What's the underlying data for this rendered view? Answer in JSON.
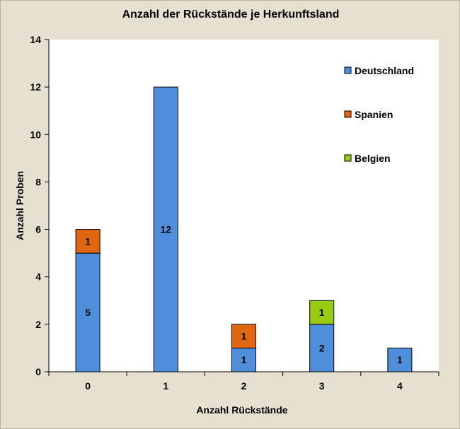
{
  "chart_data": {
    "type": "bar",
    "stacked": true,
    "title": "Anzahl der Rückstände je Herkunftsland",
    "xlabel": "Anzahl Rückstände",
    "ylabel": "Anzahl Proben",
    "categories": [
      "0",
      "1",
      "2",
      "3",
      "4"
    ],
    "ylim": [
      0,
      14
    ],
    "yticks": [
      0,
      2,
      4,
      6,
      8,
      10,
      12,
      14
    ],
    "grid": false,
    "legend_position": "top-right",
    "series": [
      {
        "name": "Deutschland",
        "color": "#4f8edb",
        "values": [
          5,
          12,
          1,
          2,
          1
        ],
        "labels": [
          "5",
          "12",
          "1",
          "2",
          "1"
        ]
      },
      {
        "name": "Spanien",
        "color": "#e0660f",
        "values": [
          1,
          0,
          1,
          0,
          0
        ],
        "labels": [
          "1",
          "",
          "1",
          "",
          ""
        ]
      },
      {
        "name": "Belgien",
        "color": "#99cc11",
        "values": [
          0,
          0,
          0,
          1,
          0
        ],
        "labels": [
          "",
          "",
          "",
          "1",
          ""
        ]
      }
    ]
  }
}
